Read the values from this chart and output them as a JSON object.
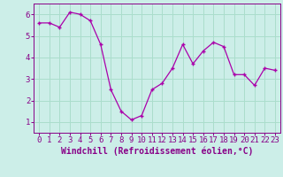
{
  "x": [
    0,
    1,
    2,
    3,
    4,
    5,
    6,
    7,
    8,
    9,
    10,
    11,
    12,
    13,
    14,
    15,
    16,
    17,
    18,
    19,
    20,
    21,
    22,
    23
  ],
  "y": [
    5.6,
    5.6,
    5.4,
    6.1,
    6.0,
    5.7,
    4.6,
    2.5,
    1.5,
    1.1,
    1.3,
    2.5,
    2.8,
    3.5,
    4.6,
    3.7,
    4.3,
    4.7,
    4.5,
    3.2,
    3.2,
    2.7,
    3.5,
    3.4
  ],
  "xlabel": "Windchill (Refroidissement éolien,°C)",
  "xtick_labels": [
    "0",
    "1",
    "2",
    "3",
    "4",
    "5",
    "6",
    "7",
    "8",
    "9",
    "10",
    "11",
    "12",
    "13",
    "14",
    "15",
    "16",
    "17",
    "18",
    "19",
    "20",
    "21",
    "22",
    "23"
  ],
  "ylim": [
    0.5,
    6.5
  ],
  "yticks": [
    1,
    2,
    3,
    4,
    5,
    6
  ],
  "line_color": "#aa00aa",
  "marker": "o",
  "marker_size": 2.5,
  "background_color": "#cceee8",
  "grid_color": "#aaddcc",
  "label_color": "#880088",
  "tick_color": "#880088",
  "spine_color": "#880088",
  "xlabel_fontsize": 7,
  "tick_fontsize": 6.5
}
